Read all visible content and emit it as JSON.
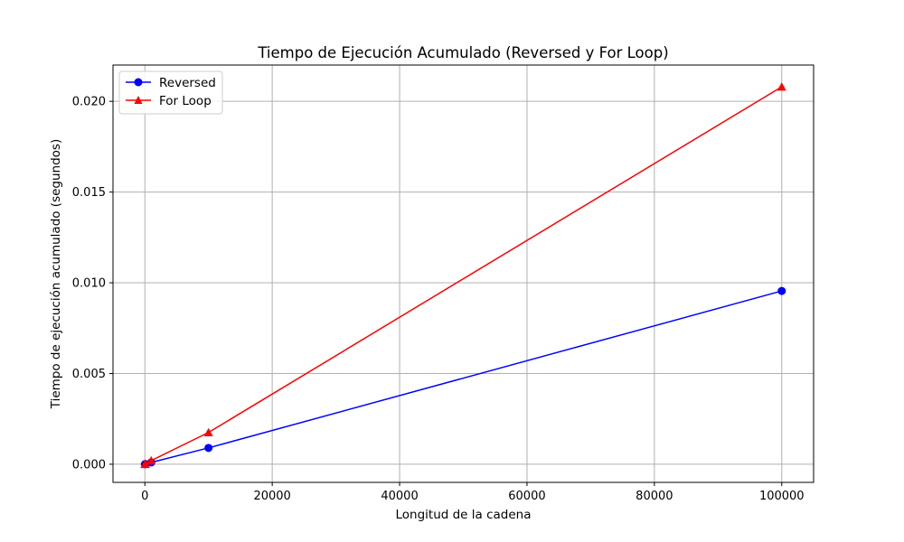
{
  "chart_data": {
    "type": "line",
    "title": "Tiempo de Ejecución Acumulado (Reversed y For Loop)",
    "xlabel": "Longitud de la cadena",
    "ylabel": "Tiempo de ejecución acumulado (segundos)",
    "xlim": [
      -5000,
      105000
    ],
    "ylim": [
      -0.001,
      0.022
    ],
    "xticks": [
      0,
      20000,
      40000,
      60000,
      80000,
      100000
    ],
    "xtick_labels": [
      "0",
      "20000",
      "40000",
      "60000",
      "80000",
      "100000"
    ],
    "yticks": [
      0.0,
      0.005,
      0.01,
      0.015,
      0.02
    ],
    "ytick_labels": [
      "0.000",
      "0.005",
      "0.010",
      "0.015",
      "0.020"
    ],
    "grid": true,
    "legend_position": "top-left",
    "series": [
      {
        "name": "Reversed",
        "color": "#0000ff",
        "marker": "circle",
        "x": [
          10,
          100,
          1000,
          10000,
          100000
        ],
        "y": [
          2e-06,
          1e-05,
          0.0001,
          0.0009,
          0.00955
        ]
      },
      {
        "name": "For Loop",
        "color": "#ff0000",
        "marker": "triangle",
        "x": [
          10,
          100,
          1000,
          10000,
          100000
        ],
        "y": [
          5e-06,
          2e-05,
          0.0002,
          0.00175,
          0.0208
        ]
      }
    ]
  }
}
